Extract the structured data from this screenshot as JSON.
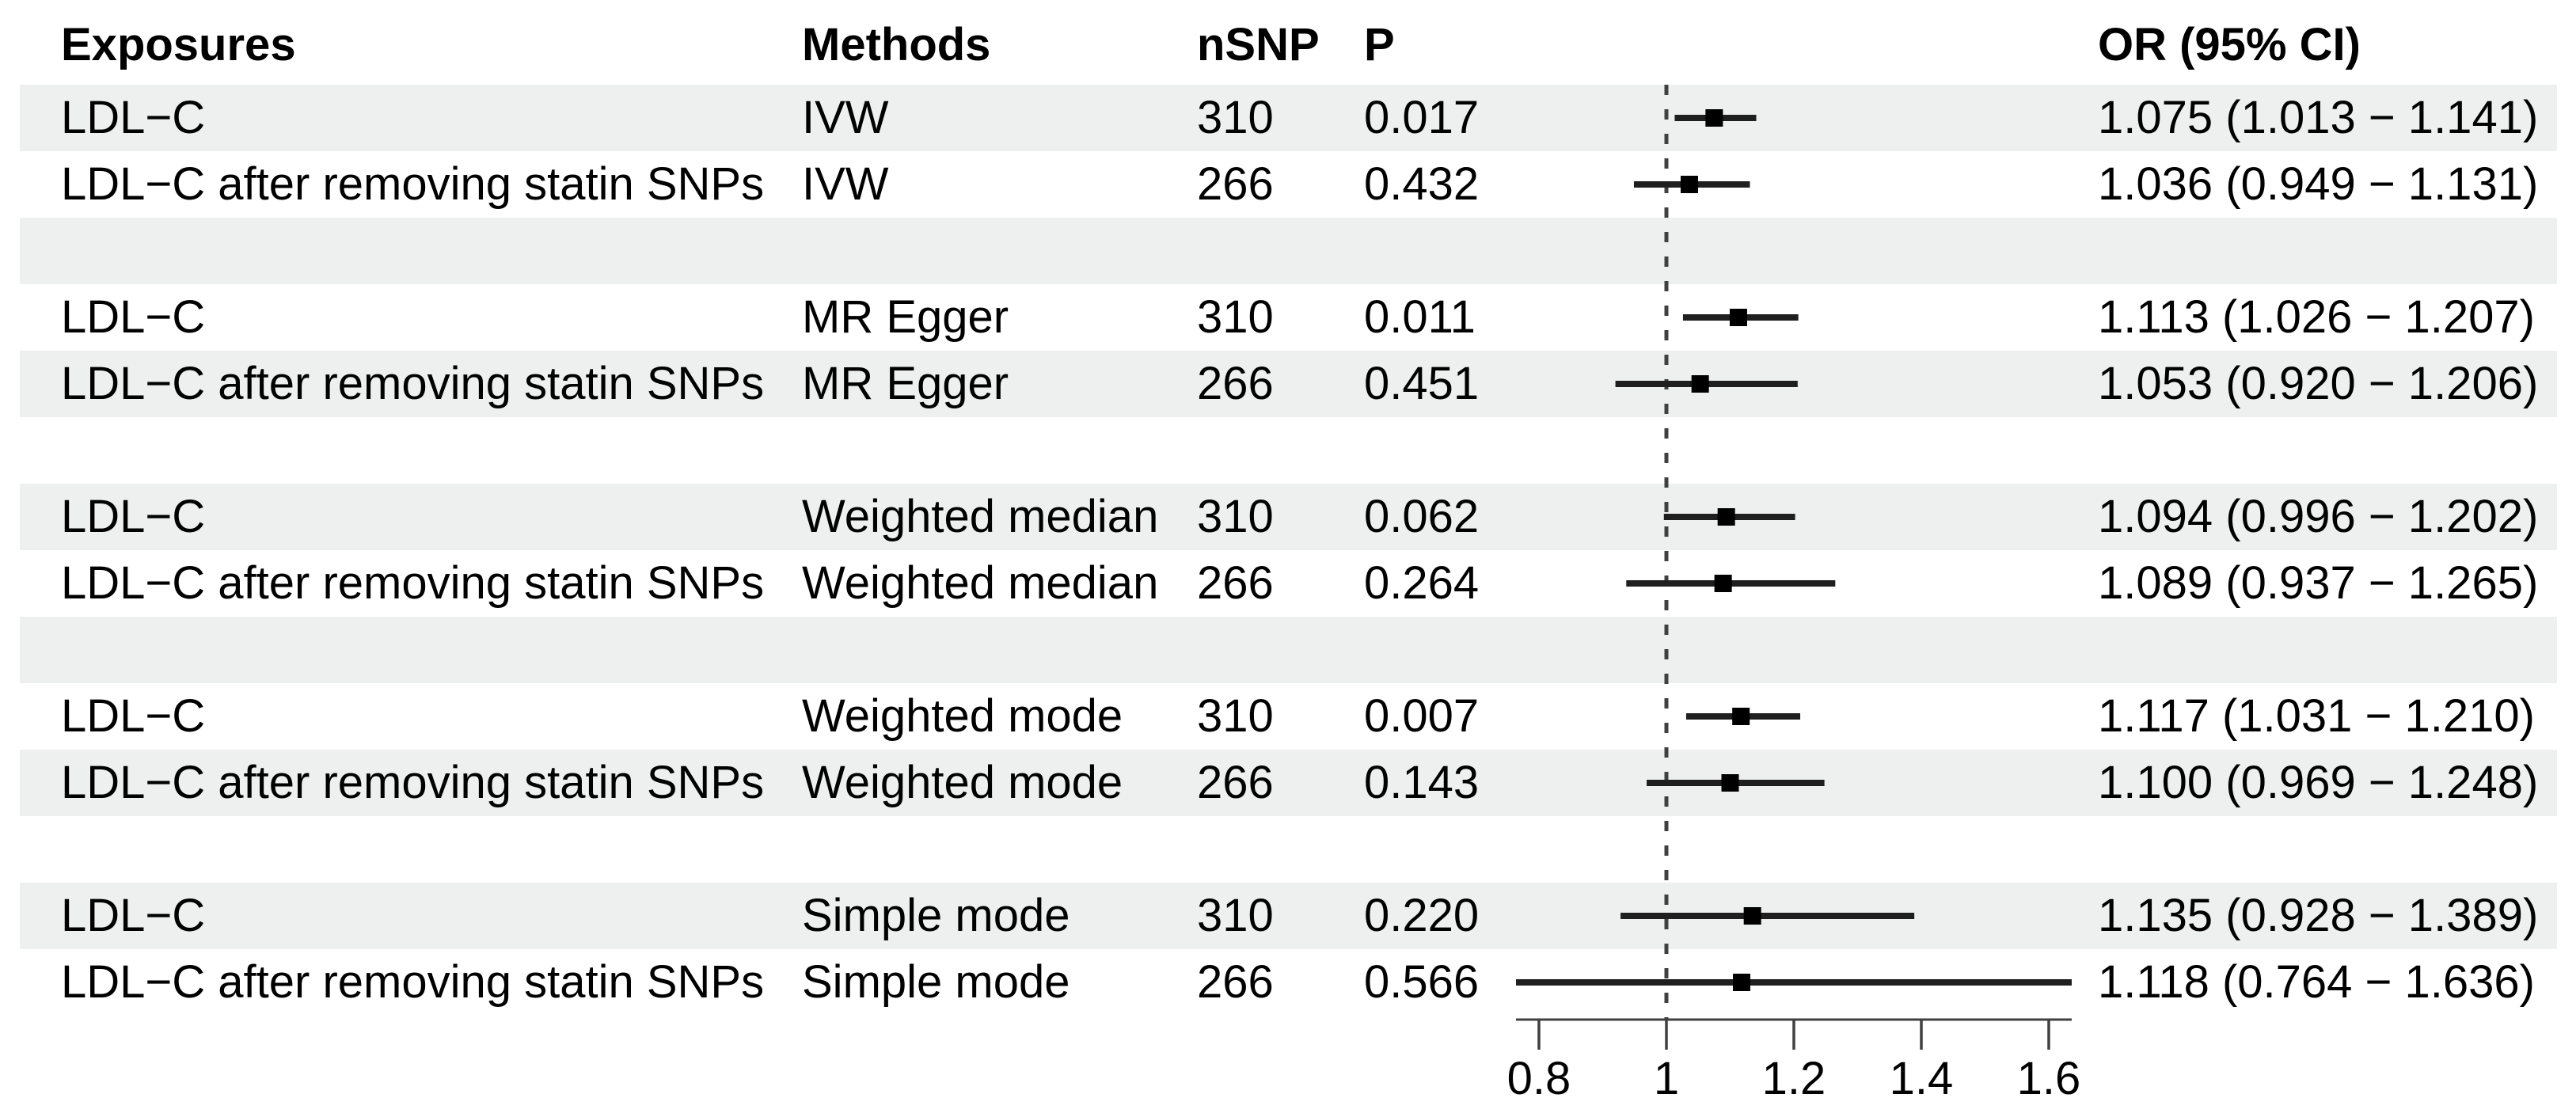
{
  "columns": {
    "exposures": "Exposures",
    "methods": "Methods",
    "nsnp": "nSNP",
    "p": "P",
    "or_ci": "OR (95% CI)"
  },
  "rows": [
    {
      "exposure": "LDL−C",
      "method": "IVW",
      "nsnp": "310",
      "p": "0.017",
      "or": 1.075,
      "ci_low": 1.013,
      "ci_high": 1.141,
      "or_ci": "1.075 (1.013 − 1.141)"
    },
    {
      "exposure": "LDL−C after removing statin SNPs",
      "method": "IVW",
      "nsnp": "266",
      "p": "0.432",
      "or": 1.036,
      "ci_low": 0.949,
      "ci_high": 1.131,
      "or_ci": "1.036 (0.949 − 1.131)"
    },
    {
      "spacer": true
    },
    {
      "exposure": "LDL−C",
      "method": "MR Egger",
      "nsnp": "310",
      "p": "0.011",
      "or": 1.113,
      "ci_low": 1.026,
      "ci_high": 1.207,
      "or_ci": "1.113 (1.026 − 1.207)"
    },
    {
      "exposure": "LDL−C after removing statin SNPs",
      "method": "MR Egger",
      "nsnp": "266",
      "p": "0.451",
      "or": 1.053,
      "ci_low": 0.92,
      "ci_high": 1.206,
      "or_ci": "1.053 (0.920 − 1.206)"
    },
    {
      "spacer": true
    },
    {
      "exposure": "LDL−C",
      "method": "Weighted median",
      "nsnp": "310",
      "p": "0.062",
      "or": 1.094,
      "ci_low": 0.996,
      "ci_high": 1.202,
      "or_ci": "1.094 (0.996 − 1.202)"
    },
    {
      "exposure": "LDL−C after removing statin SNPs",
      "method": "Weighted median",
      "nsnp": "266",
      "p": "0.264",
      "or": 1.089,
      "ci_low": 0.937,
      "ci_high": 1.265,
      "or_ci": "1.089 (0.937 − 1.265)"
    },
    {
      "spacer": true
    },
    {
      "exposure": "LDL−C",
      "method": "Weighted mode",
      "nsnp": "310",
      "p": "0.007",
      "or": 1.117,
      "ci_low": 1.031,
      "ci_high": 1.21,
      "or_ci": "1.117 (1.031 − 1.210)"
    },
    {
      "exposure": "LDL−C after removing statin SNPs",
      "method": "Weighted mode",
      "nsnp": "266",
      "p": "0.143",
      "or": 1.1,
      "ci_low": 0.969,
      "ci_high": 1.248,
      "or_ci": "1.100 (0.969 − 1.248)"
    },
    {
      "spacer": true
    },
    {
      "exposure": "LDL−C",
      "method": "Simple mode",
      "nsnp": "310",
      "p": "0.220",
      "or": 1.135,
      "ci_low": 0.928,
      "ci_high": 1.389,
      "or_ci": "1.135 (0.928 − 1.389)"
    },
    {
      "exposure": "LDL−C after removing statin SNPs",
      "method": "Simple mode",
      "nsnp": "266",
      "p": "0.566",
      "or": 1.118,
      "ci_low": 0.764,
      "ci_high": 1.636,
      "or_ci": "1.118 (0.764 − 1.636)"
    }
  ],
  "axis": {
    "ticks": [
      {
        "label": "0.8",
        "value": 0.8
      },
      {
        "label": "1",
        "value": 1
      },
      {
        "label": "1.2",
        "value": 1.2
      },
      {
        "label": "1.4",
        "value": 1.4
      },
      {
        "label": "1.6",
        "value": 1.6
      }
    ],
    "reference_value": 1
  },
  "colors": {
    "stripe": "#eef0ef",
    "text": "#000000",
    "axis_line": "#404040",
    "ci_line": "#1f1f1f",
    "marker": "#000000"
  },
  "chart_data": {
    "type": "scatter",
    "plot_style": "forest",
    "xlabel": "",
    "ylabel": "",
    "x_axis": {
      "tick_values": [
        0.8,
        1,
        1.2,
        1.4,
        1.6
      ],
      "range": [
        0.764,
        1.636
      ],
      "reference_line": 1,
      "scale": "linear"
    },
    "legend": "none",
    "grid": false,
    "points": [
      {
        "exposure": "LDL−C",
        "method": "IVW",
        "nsnp": 310,
        "p": 0.017,
        "or": 1.075,
        "ci": [
          1.013,
          1.141
        ]
      },
      {
        "exposure": "LDL−C after removing statin SNPs",
        "method": "IVW",
        "nsnp": 266,
        "p": 0.432,
        "or": 1.036,
        "ci": [
          0.949,
          1.131
        ]
      },
      {
        "exposure": "LDL−C",
        "method": "MR Egger",
        "nsnp": 310,
        "p": 0.011,
        "or": 1.113,
        "ci": [
          1.026,
          1.207
        ]
      },
      {
        "exposure": "LDL−C after removing statin SNPs",
        "method": "MR Egger",
        "nsnp": 266,
        "p": 0.451,
        "or": 1.053,
        "ci": [
          0.92,
          1.206
        ]
      },
      {
        "exposure": "LDL−C",
        "method": "Weighted median",
        "nsnp": 310,
        "p": 0.062,
        "or": 1.094,
        "ci": [
          0.996,
          1.202
        ]
      },
      {
        "exposure": "LDL−C after removing statin SNPs",
        "method": "Weighted median",
        "nsnp": 266,
        "p": 0.264,
        "or": 1.089,
        "ci": [
          0.937,
          1.265
        ]
      },
      {
        "exposure": "LDL−C",
        "method": "Weighted mode",
        "nsnp": 310,
        "p": 0.007,
        "or": 1.117,
        "ci": [
          1.031,
          1.21
        ]
      },
      {
        "exposure": "LDL−C after removing statin SNPs",
        "method": "Weighted mode",
        "nsnp": 266,
        "p": 0.143,
        "or": 1.1,
        "ci": [
          0.969,
          1.248
        ]
      },
      {
        "exposure": "LDL−C",
        "method": "Simple mode",
        "nsnp": 310,
        "p": 0.22,
        "or": 1.135,
        "ci": [
          0.928,
          1.389
        ]
      },
      {
        "exposure": "LDL−C after removing statin SNPs",
        "method": "Simple mode",
        "nsnp": 266,
        "p": 0.566,
        "or": 1.118,
        "ci": [
          0.764,
          1.636
        ]
      }
    ]
  }
}
